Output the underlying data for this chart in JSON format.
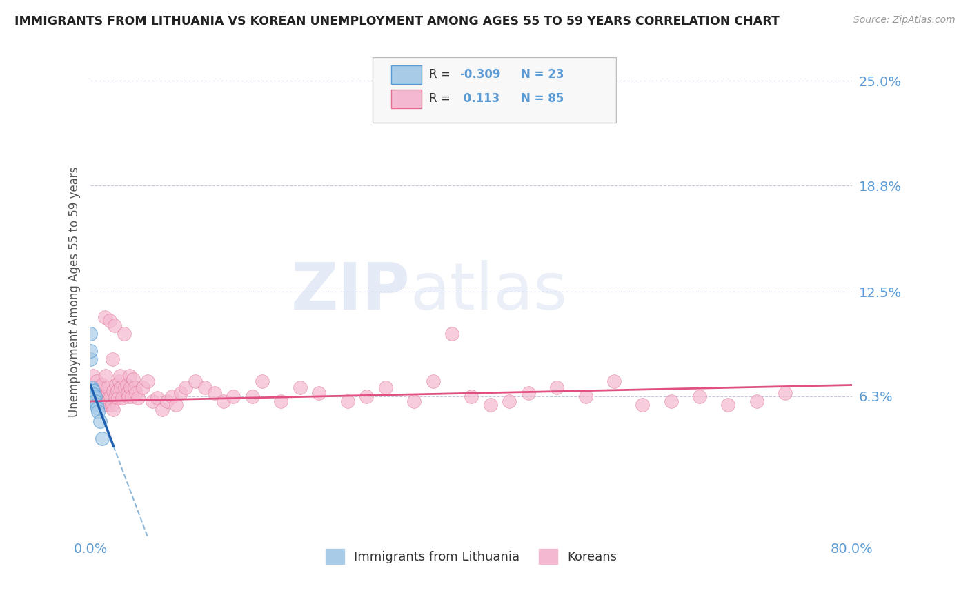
{
  "title": "IMMIGRANTS FROM LITHUANIA VS KOREAN UNEMPLOYMENT AMONG AGES 55 TO 59 YEARS CORRELATION CHART",
  "source_text": "Source: ZipAtlas.com",
  "ylabel": "Unemployment Among Ages 55 to 59 years",
  "xlim": [
    0,
    0.8
  ],
  "ylim": [
    -0.02,
    0.27
  ],
  "yticks": [
    0.063,
    0.125,
    0.188,
    0.25
  ],
  "ytick_labels": [
    "6.3%",
    "12.5%",
    "18.8%",
    "25.0%"
  ],
  "xticks": [
    0.0,
    0.1,
    0.2,
    0.3,
    0.4,
    0.5,
    0.6,
    0.7,
    0.8
  ],
  "xtick_labels": [
    "0.0%",
    "",
    "",
    "",
    "",
    "",
    "",
    "",
    "80.0%"
  ],
  "series1_color": "#a8cce8",
  "series1_edge": "#5b9bd5",
  "series2_color": "#f4b8d0",
  "series2_edge": "#e07090",
  "trend1_solid_color": "#2060b0",
  "trend1_dash_color": "#90b8d8",
  "trend2_color": "#e05080",
  "legend_box_color": "#f0f0f0",
  "legend_box_edge": "#cccccc",
  "label1": "Immigrants from Lithuania",
  "label2": "Koreans",
  "watermark": "ZIPatlas",
  "background_color": "#ffffff",
  "grid_color": "#c8c8dc",
  "title_color": "#222222",
  "axis_label_color": "#555555",
  "tick_label_color": "#5b9bd5",
  "series1_x": [
    0.0,
    0.0,
    0.0,
    0.001,
    0.001,
    0.001,
    0.001,
    0.002,
    0.002,
    0.002,
    0.002,
    0.003,
    0.003,
    0.003,
    0.004,
    0.004,
    0.005,
    0.005,
    0.006,
    0.007,
    0.008,
    0.01,
    0.012
  ],
  "series1_y": [
    0.085,
    0.09,
    0.1,
    0.068,
    0.066,
    0.065,
    0.063,
    0.067,
    0.065,
    0.063,
    0.062,
    0.066,
    0.064,
    0.063,
    0.062,
    0.06,
    0.063,
    0.06,
    0.058,
    0.056,
    0.054,
    0.048,
    0.038
  ],
  "series2_x": [
    0.003,
    0.005,
    0.006,
    0.007,
    0.008,
    0.009,
    0.01,
    0.01,
    0.011,
    0.012,
    0.013,
    0.014,
    0.015,
    0.016,
    0.016,
    0.017,
    0.018,
    0.018,
    0.019,
    0.02,
    0.021,
    0.022,
    0.023,
    0.024,
    0.024,
    0.025,
    0.026,
    0.027,
    0.028,
    0.029,
    0.03,
    0.031,
    0.032,
    0.033,
    0.035,
    0.036,
    0.038,
    0.039,
    0.04,
    0.041,
    0.042,
    0.043,
    0.045,
    0.046,
    0.048,
    0.05,
    0.055,
    0.06,
    0.065,
    0.07,
    0.075,
    0.08,
    0.085,
    0.09,
    0.095,
    0.1,
    0.11,
    0.12,
    0.13,
    0.14,
    0.15,
    0.17,
    0.18,
    0.2,
    0.22,
    0.24,
    0.27,
    0.29,
    0.31,
    0.34,
    0.36,
    0.38,
    0.4,
    0.42,
    0.44,
    0.46,
    0.49,
    0.52,
    0.55,
    0.58,
    0.61,
    0.64,
    0.67,
    0.7,
    0.73
  ],
  "series2_y": [
    0.075,
    0.068,
    0.072,
    0.063,
    0.065,
    0.06,
    0.068,
    0.065,
    0.06,
    0.07,
    0.063,
    0.058,
    0.11,
    0.075,
    0.06,
    0.063,
    0.068,
    0.058,
    0.062,
    0.108,
    0.063,
    0.058,
    0.085,
    0.066,
    0.055,
    0.105,
    0.063,
    0.07,
    0.066,
    0.062,
    0.072,
    0.075,
    0.068,
    0.062,
    0.1,
    0.068,
    0.07,
    0.065,
    0.063,
    0.075,
    0.068,
    0.063,
    0.073,
    0.068,
    0.065,
    0.062,
    0.068,
    0.072,
    0.06,
    0.062,
    0.055,
    0.06,
    0.063,
    0.058,
    0.065,
    0.068,
    0.072,
    0.068,
    0.065,
    0.06,
    0.063,
    0.063,
    0.072,
    0.06,
    0.068,
    0.065,
    0.06,
    0.063,
    0.068,
    0.06,
    0.072,
    0.1,
    0.063,
    0.058,
    0.06,
    0.065,
    0.068,
    0.063,
    0.072,
    0.058,
    0.06,
    0.063,
    0.058,
    0.06,
    0.065
  ],
  "trend1_x0": 0.0,
  "trend1_x1": 0.024,
  "trend1_slope": -1.5,
  "trend1_intercept": 0.0695,
  "trend1_dash_x0": 0.024,
  "trend1_dash_x1": 0.13,
  "trend2_x0": 0.0,
  "trend2_x1": 0.8,
  "trend2_slope": 0.012,
  "trend2_intercept": 0.06
}
